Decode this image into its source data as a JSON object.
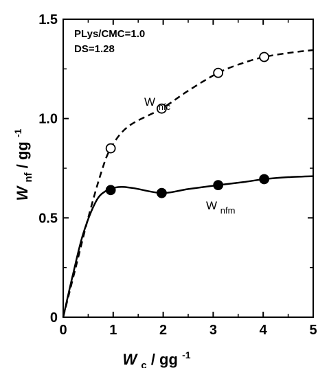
{
  "chart_data": {
    "type": "line",
    "title": "",
    "xlabel": {
      "main": "W",
      "sub": "c",
      "unit": " / gg",
      "sup": "-1"
    },
    "ylabel": {
      "main": "W",
      "sub": "nf",
      "unit": " / gg",
      "sup": "-1"
    },
    "xlim": [
      0,
      5
    ],
    "ylim": [
      0,
      1.5
    ],
    "x_ticks": [
      0,
      1,
      2,
      3,
      4,
      5
    ],
    "y_ticks": [
      0,
      0.5,
      1.0,
      1.5
    ],
    "x_tick_labels": [
      "0",
      "1",
      "2",
      "3",
      "4",
      "5"
    ],
    "y_tick_labels": [
      "0",
      "0.5",
      "1.0",
      "1.5"
    ],
    "grid": false,
    "annotations": [
      "PLys/CMC=1.0",
      "DS=1.28"
    ],
    "series": [
      {
        "name": "W_nfc",
        "label_main": "W",
        "label_sub": "nfc",
        "marker": "open-circle",
        "line_style": "dashed",
        "x": [
          0.95,
          1.97,
          3.1,
          4.02
        ],
        "y": [
          0.85,
          1.05,
          1.23,
          1.31
        ],
        "curve": [
          [
            0,
            0
          ],
          [
            0.25,
            0.25
          ],
          [
            0.5,
            0.5
          ],
          [
            0.75,
            0.72
          ],
          [
            0.95,
            0.85
          ],
          [
            1.3,
            0.96
          ],
          [
            1.97,
            1.05
          ],
          [
            2.5,
            1.14
          ],
          [
            3.1,
            1.23
          ],
          [
            3.6,
            1.28
          ],
          [
            4.02,
            1.31
          ],
          [
            4.5,
            1.33
          ],
          [
            5.0,
            1.345
          ]
        ]
      },
      {
        "name": "W_nfm",
        "label_main": "W",
        "label_sub": "nfm",
        "marker": "filled-circle",
        "line_style": "solid",
        "x": [
          0.95,
          1.97,
          3.1,
          4.02
        ],
        "y": [
          0.64,
          0.625,
          0.665,
          0.695
        ],
        "curve": [
          [
            0,
            0
          ],
          [
            0.2,
            0.22
          ],
          [
            0.4,
            0.42
          ],
          [
            0.65,
            0.58
          ],
          [
            0.85,
            0.635
          ],
          [
            1.1,
            0.655
          ],
          [
            1.4,
            0.65
          ],
          [
            1.97,
            0.625
          ],
          [
            2.5,
            0.645
          ],
          [
            3.1,
            0.665
          ],
          [
            3.6,
            0.68
          ],
          [
            4.02,
            0.695
          ],
          [
            4.5,
            0.705
          ],
          [
            5.0,
            0.71
          ]
        ]
      }
    ]
  }
}
